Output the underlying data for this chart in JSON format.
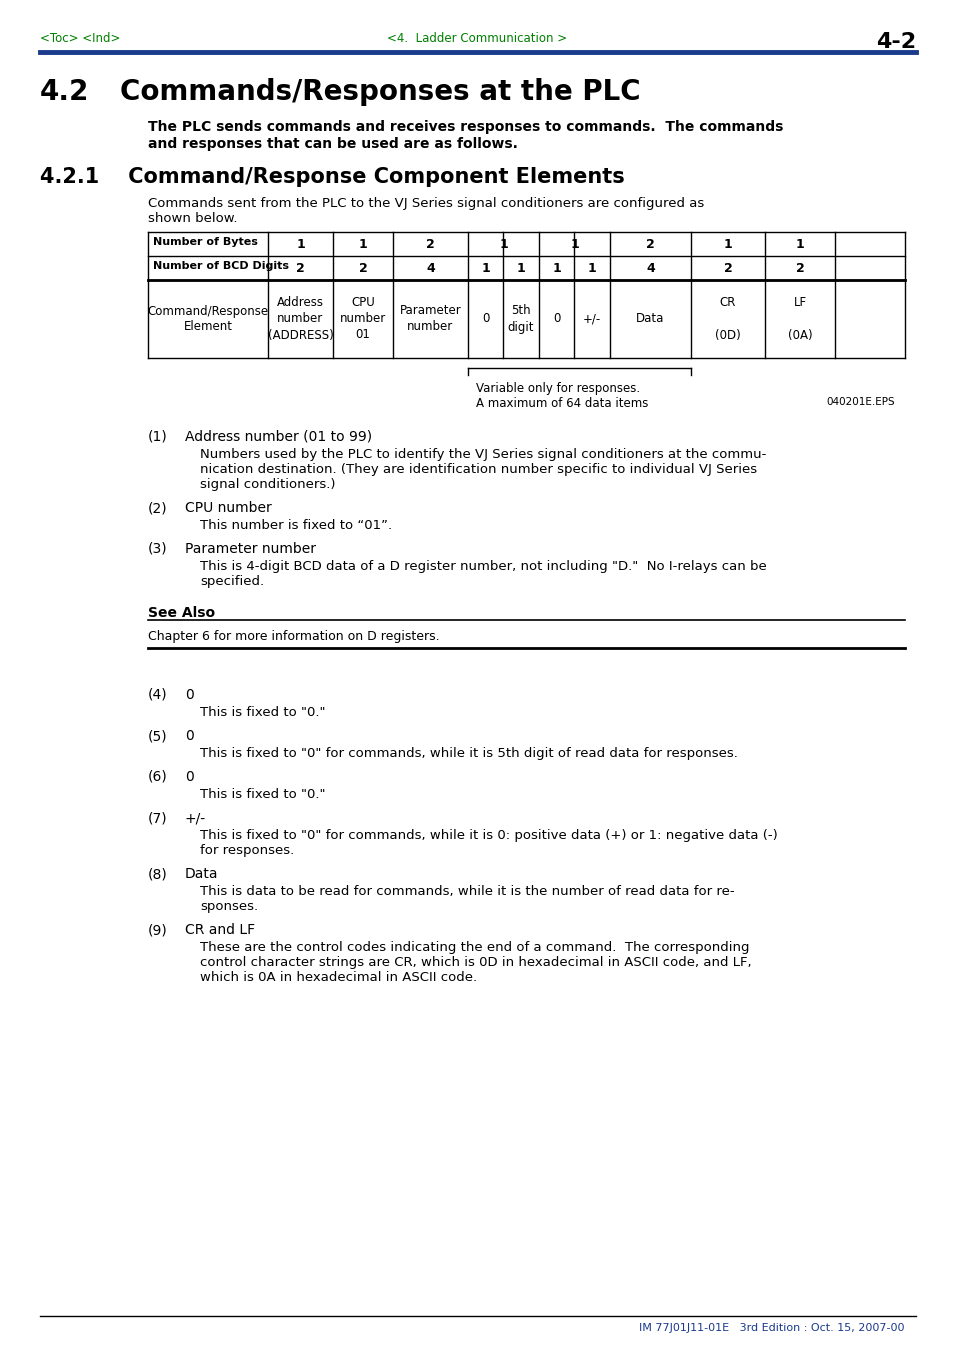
{
  "page_header_left": "<Toc> <Ind>",
  "page_header_center": "<4.  Ladder Communication >",
  "page_header_right": "4-2",
  "header_color": "#008000",
  "header_line_color": "#1a3a8c",
  "section_title_num": "4.2",
  "section_title_text": "Commands/Responses at the PLC",
  "section_intro_line1": "The PLC sends commands and receives responses to commands.  The commands",
  "section_intro_line2": "and responses that can be used are as follows.",
  "subsection_title": "4.2.1    Command/Response Component Elements",
  "subsection_intro_line1": "Commands sent from the PLC to the VJ Series signal conditioners are configured as",
  "subsection_intro_line2": "shown below.",
  "bracket_note_line1": "Variable only for responses.",
  "bracket_note_line2": "A maximum of 64 data items",
  "bracket_note_ref": "040201E.EPS",
  "items": [
    {
      "num": "(1)",
      "title": "Address number (01 to 99)",
      "body": [
        "Numbers used by the PLC to identify the VJ Series signal conditioners at the commu-",
        "nication destination. (They are identification number specific to individual VJ Series",
        "signal conditioners.)"
      ]
    },
    {
      "num": "(2)",
      "title": "CPU number",
      "body": [
        "This number is fixed to “01”."
      ]
    },
    {
      "num": "(3)",
      "title": "Parameter number",
      "body": [
        "This is 4-digit BCD data of a D register number, not including \"D.\"  No I-relays can be",
        "specified."
      ]
    }
  ],
  "see_also_title": "See Also",
  "see_also_body": "Chapter 6 for more information on D registers.",
  "items2": [
    {
      "num": "(4)",
      "title": "0",
      "body": [
        "This is fixed to \"0.\""
      ]
    },
    {
      "num": "(5)",
      "title": "0",
      "body": [
        "This is fixed to \"0\" for commands, while it is 5th digit of read data for responses."
      ]
    },
    {
      "num": "(6)",
      "title": "0",
      "body": [
        "This is fixed to \"0.\""
      ]
    },
    {
      "num": "(7)",
      "title": "+/-",
      "body": [
        "This is fixed to \"0\" for commands, while it is 0: positive data (+) or 1: negative data (-)",
        "for responses."
      ]
    },
    {
      "num": "(8)",
      "title": "Data",
      "body": [
        "This is data to be read for commands, while it is the number of read data for re-",
        "sponses."
      ]
    },
    {
      "num": "(9)",
      "title": "CR and LF",
      "body": [
        "These are the control codes indicating the end of a command.  The corresponding",
        "control character strings are CR, which is 0D in hexadecimal in ASCII code, and LF,",
        "which is 0A in hexadecimal in ASCII code."
      ]
    }
  ],
  "footer_text": "IM 77J01J11-01E   3rd Edition : Oct. 15, 2007-00",
  "bg_color": "#ffffff"
}
